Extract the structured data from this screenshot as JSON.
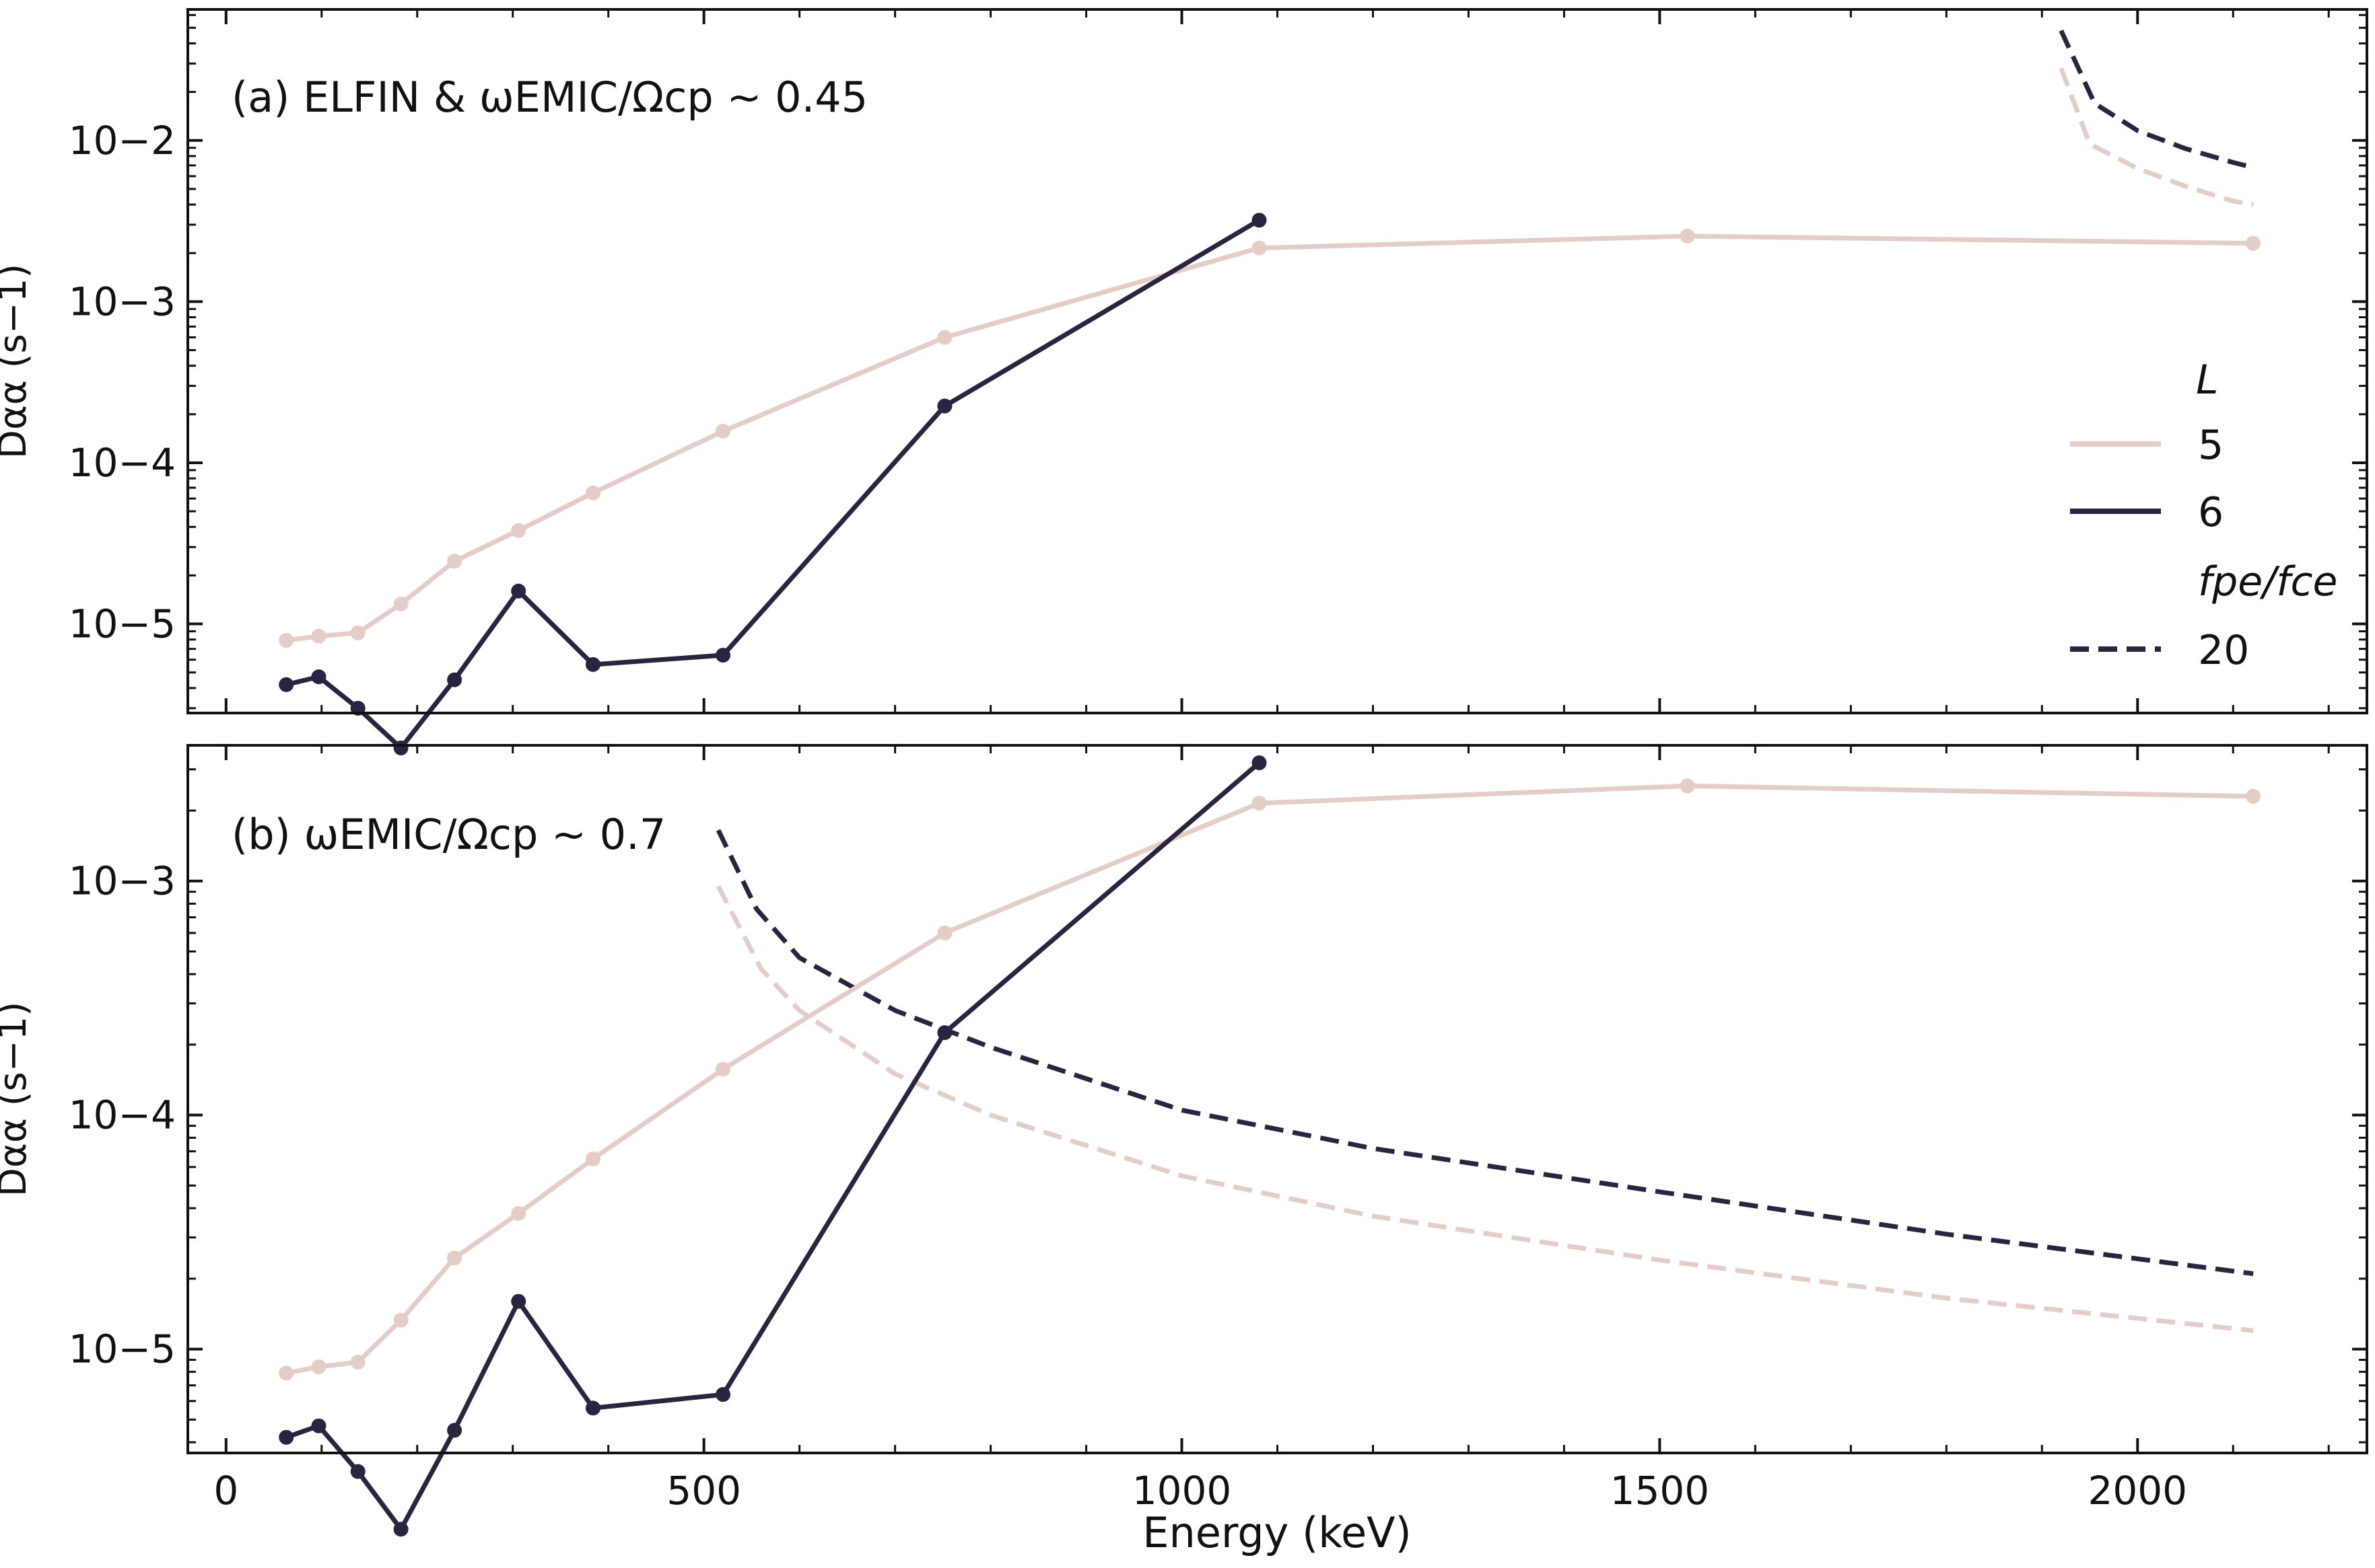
{
  "figure": {
    "xlabel": "Energy (keV)",
    "colors": {
      "L5": "#e3cdc6",
      "L6": "#2b2440",
      "axis": "#111111"
    }
  },
  "legend": {
    "title_L": "L",
    "entries": [
      {
        "label": "5",
        "style": "solid",
        "color": "#e3cdc6"
      },
      {
        "label": "6",
        "style": "solid",
        "color": "#2b2440"
      }
    ],
    "title_ratio": "fpe/fce",
    "ratio_entries": [
      {
        "label": "20",
        "style": "dashed",
        "color": "#2b2440"
      }
    ],
    "placement": "right, top panel"
  },
  "chart_data": [
    {
      "type": "line",
      "panel": "a",
      "annotation": "(a) ELFIN & ωEMIC/Ωcp ~ 0.45",
      "ylabel": "Dαα (s−1)",
      "xlim": [
        -40,
        2240
      ],
      "yscale": "log",
      "ylim": [
        2.8e-06,
        0.065
      ],
      "xticks": [
        0,
        500,
        1000,
        1500,
        2000
      ],
      "yticks": [
        1e-05,
        0.0001,
        0.001,
        0.01
      ],
      "ytick_labels": [
        "10−5",
        "10−4",
        "10−3",
        "10−2"
      ],
      "series": [
        {
          "name": "5",
          "style": "solid-markers",
          "color": "#e3cdc6",
          "x": [
            63,
            97,
            138,
            183,
            239,
            306,
            384,
            520,
            752,
            1081,
            1529,
            2121
          ],
          "y": [
            7.9e-06,
            8.4e-06,
            8.8e-06,
            1.33e-05,
            2.45e-05,
            3.8e-05,
            6.5e-05,
            0.000157,
            0.0006,
            0.00215,
            0.00255,
            0.0023
          ]
        },
        {
          "name": "6",
          "style": "solid-markers",
          "color": "#2b2440",
          "x": [
            63,
            97,
            138,
            183,
            239,
            306,
            384,
            520,
            752,
            1081
          ],
          "y": [
            4.2e-06,
            4.7e-06,
            3e-06,
            1.7e-06,
            4.5e-06,
            1.6e-05,
            5.6e-06,
            6.4e-06,
            0.000225,
            0.0032
          ]
        },
        {
          "name": "5 (fpe/fce = 20)",
          "style": "dashed",
          "color": "#e3cdc6",
          "x": [
            1920,
            1950,
            2000,
            2050,
            2100,
            2121
          ],
          "y": [
            0.028,
            0.0095,
            0.0067,
            0.0052,
            0.0042,
            0.004
          ]
        },
        {
          "name": "6 (fpe/fce = 20)",
          "style": "dashed",
          "color": "#2b2440",
          "x": [
            1920,
            1955,
            2000,
            2050,
            2100,
            2121
          ],
          "y": [
            0.048,
            0.017,
            0.0115,
            0.0089,
            0.0073,
            0.0068
          ]
        }
      ]
    },
    {
      "type": "line",
      "panel": "b",
      "annotation": "(b) ωEMIC/Ωcp ~ 0.7",
      "ylabel": "Dαα (s−1)",
      "xlim": [
        -40,
        2240
      ],
      "yscale": "log",
      "ylim": [
        3.6e-06,
        0.0038
      ],
      "xticks": [
        0,
        500,
        1000,
        1500,
        2000
      ],
      "yticks": [
        1e-05,
        0.0001,
        0.001
      ],
      "ytick_labels": [
        "10−5",
        "10−4",
        "10−3"
      ],
      "series": [
        {
          "name": "5",
          "style": "solid-markers",
          "color": "#e3cdc6",
          "x": [
            63,
            97,
            138,
            183,
            239,
            306,
            384,
            520,
            752,
            1081,
            1529,
            2121
          ],
          "y": [
            7.9e-06,
            8.4e-06,
            8.8e-06,
            1.33e-05,
            2.45e-05,
            3.8e-05,
            6.5e-05,
            0.000157,
            0.0006,
            0.00215,
            0.00255,
            0.0023
          ]
        },
        {
          "name": "6",
          "style": "solid-markers",
          "color": "#2b2440",
          "x": [
            63,
            97,
            138,
            183,
            239,
            306,
            384,
            520,
            752,
            1081
          ],
          "y": [
            4.2e-06,
            4.7e-06,
            3e-06,
            1.7e-06,
            4.5e-06,
            1.6e-05,
            5.6e-06,
            6.4e-06,
            0.000225,
            0.0032
          ]
        },
        {
          "name": "5 (fpe/fce = 20)",
          "style": "dashed",
          "color": "#e3cdc6",
          "x": [
            515,
            560,
            600,
            700,
            800,
            1000,
            1200,
            1500,
            1800,
            2121
          ],
          "y": [
            0.00095,
            0.00042,
            0.00028,
            0.00015,
            0.0001,
            5.5e-05,
            3.7e-05,
            2.4e-05,
            1.65e-05,
            1.2e-05
          ]
        },
        {
          "name": "6 (fpe/fce = 20)",
          "style": "dashed",
          "color": "#2b2440",
          "x": [
            515,
            555,
            600,
            700,
            800,
            1000,
            1200,
            1500,
            1800,
            2121
          ],
          "y": [
            0.00165,
            0.00076,
            0.00047,
            0.00028,
            0.000195,
            0.000105,
            7.2e-05,
            4.7e-05,
            3.1e-05,
            2.1e-05
          ]
        }
      ]
    }
  ]
}
